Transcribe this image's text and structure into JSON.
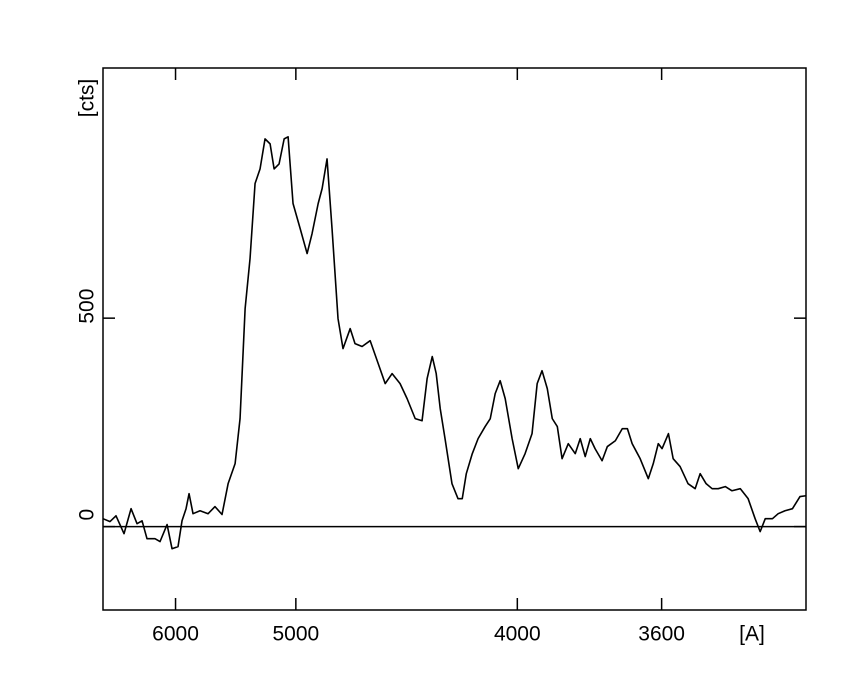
{
  "chart_data": {
    "type": "line",
    "xlabel": "[A]",
    "ylabel": "[cts]",
    "xscale": "inverse-square",
    "color": "#000000",
    "zero_line": true,
    "xlim": [
      7000,
      3300
    ],
    "xticks": [
      6000,
      5000,
      4000,
      3600
    ],
    "ylim": [
      -200,
      1100
    ],
    "yticks": [
      0,
      500
    ],
    "x": [
      7000,
      6881,
      6784,
      6660,
      6557,
      6473,
      6405,
      6340,
      6239,
      6178,
      6095,
      6039,
      5973,
      5930,
      5888,
      5857,
      5817,
      5748,
      5672,
      5609,
      5547,
      5495,
      5437,
      5397,
      5357,
      5319,
      5281,
      5244,
      5208,
      5172,
      5144,
      5110,
      5076,
      5050,
      5018,
      4973,
      4930,
      4900,
      4864,
      4841,
      4813,
      4785,
      4752,
      4725,
      4687,
      4662,
      4626,
      4586,
      4547,
      4514,
      4482,
      4446,
      4415,
      4380,
      4351,
      4330,
      4309,
      4293,
      4277,
      4258,
      4231,
      4208,
      4192,
      4177,
      4155,
      4134,
      4109,
      4091,
      4074,
      4057,
      4040,
      4017,
      3997,
      3975,
      3953,
      3937,
      3922,
      3906,
      3891,
      3876,
      3862,
      3844,
      3824,
      3810,
      3796,
      3782,
      3769,
      3750,
      3736,
      3715,
      3697,
      3684,
      3672,
      3652,
      3632,
      3620,
      3608,
      3599,
      3584,
      3573,
      3557,
      3539,
      3523,
      3512,
      3499,
      3486,
      3473,
      3458,
      3444,
      3427,
      3411,
      3397,
      3387,
      3377,
      3363,
      3352,
      3339,
      3325,
      3311,
      3300
    ],
    "values": [
      19,
      12,
      26,
      -17,
      43,
      7,
      14,
      -29,
      -29,
      -36,
      5,
      -53,
      -48,
      14,
      43,
      79,
      31,
      38,
      31,
      48,
      29,
      103,
      151,
      259,
      523,
      643,
      823,
      858,
      930,
      918,
      858,
      870,
      930,
      935,
      775,
      715,
      655,
      703,
      775,
      811,
      882,
      715,
      499,
      427,
      475,
      439,
      432,
      446,
      391,
      343,
      367,
      343,
      307,
      259,
      254,
      355,
      408,
      367,
      283,
      211,
      103,
      67,
      67,
      127,
      175,
      211,
      240,
      259,
      319,
      350,
      307,
      211,
      139,
      175,
      223,
      343,
      374,
      331,
      259,
      240,
      163,
      199,
      175,
      211,
      168,
      211,
      187,
      158,
      192,
      206,
      235,
      235,
      199,
      163,
      115,
      151,
      199,
      187,
      223,
      163,
      144,
      103,
      91,
      127,
      103,
      91,
      91,
      96,
      86,
      91,
      67,
      19,
      -12,
      19,
      19,
      31,
      38,
      43,
      72,
      74
    ]
  }
}
